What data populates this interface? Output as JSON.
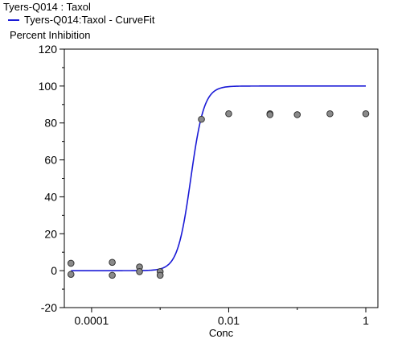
{
  "chart_data": {
    "type": "scatter",
    "title": "Tyers-Q014  : Taxol",
    "legend": [
      {
        "name": "Tyers-Q014:Taxol - CurveFit",
        "color": "#1a1ad6"
      }
    ],
    "ylabel": "Percent Inhibition",
    "xlabel": "Conc",
    "x_scale": "log",
    "xlim": [
      4e-05,
      1.5
    ],
    "ylim": [
      -20,
      120
    ],
    "y_ticks": [
      -20,
      0,
      20,
      40,
      60,
      80,
      100,
      120
    ],
    "x_ticks": [
      0.0001,
      0.01,
      1
    ],
    "x_tick_labels": [
      "0.0001",
      "0.01",
      "1"
    ],
    "grid": false,
    "series": [
      {
        "marker": "circle",
        "color": "#8a8a8a",
        "points": [
          {
            "x": 5e-05,
            "y": 4
          },
          {
            "x": 5e-05,
            "y": -2
          },
          {
            "x": 0.0002,
            "y": 4.5
          },
          {
            "x": 0.0002,
            "y": -2.5
          },
          {
            "x": 0.0005,
            "y": 2
          },
          {
            "x": 0.0005,
            "y": -0.5
          },
          {
            "x": 0.001,
            "y": -0.5
          },
          {
            "x": 0.001,
            "y": -2.5
          },
          {
            "x": 0.004,
            "y": 82
          },
          {
            "x": 0.01,
            "y": 85
          },
          {
            "x": 0.04,
            "y": 85
          },
          {
            "x": 0.04,
            "y": 84.5
          },
          {
            "x": 0.1,
            "y": 84.5
          },
          {
            "x": 0.3,
            "y": 85
          },
          {
            "x": 1,
            "y": 85
          }
        ]
      },
      {
        "name": "Tyers-Q014:Taxol - CurveFit",
        "type": "line",
        "color": "#1a1ad6",
        "fit": {
          "bottom": 0,
          "top": 100,
          "ec50": 0.0028,
          "hill": 4.5
        },
        "x_range": [
          5e-05,
          1
        ]
      }
    ]
  }
}
